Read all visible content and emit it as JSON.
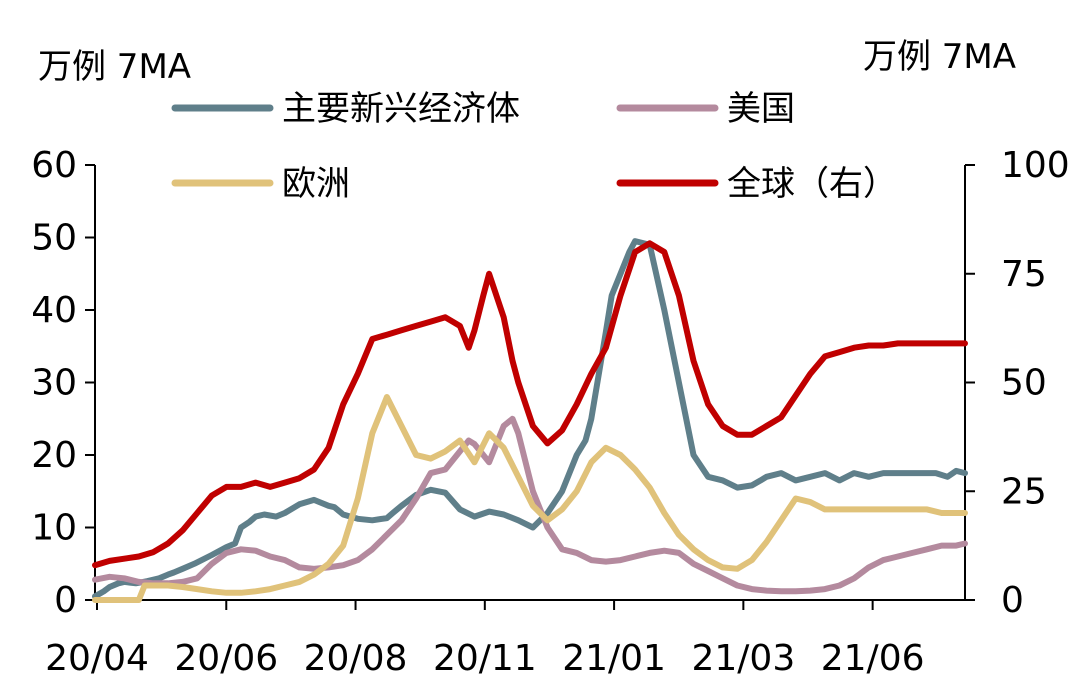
{
  "chart_data": {
    "type": "line",
    "left_unit": "万例 7MA",
    "right_unit": "万例 7MA",
    "x_ticks": [
      "20/04",
      "20/06",
      "20/08",
      "20/11",
      "21/01",
      "21/03",
      "21/06"
    ],
    "left_ticks": [
      "0",
      "10",
      "20",
      "30",
      "40",
      "50",
      "60"
    ],
    "right_ticks": [
      "0",
      "25",
      "50",
      "75",
      "100"
    ],
    "ylim_left": [
      0,
      60
    ],
    "ylim_right": [
      0,
      100
    ],
    "legend": {
      "columns": 2
    },
    "series": [
      {
        "name": "主要新兴经济体",
        "color": "#5f7f8a",
        "axis": "left",
        "x": [
          0,
          3,
          5,
          8,
          10,
          12,
          14,
          18,
          22,
          25,
          27,
          30,
          34,
          40,
          45,
          48,
          50,
          53,
          55,
          58,
          62,
          65,
          70,
          75,
          80,
          82,
          85,
          90,
          95,
          100,
          102,
          105,
          110,
          115,
          120,
          125,
          130,
          135,
          140,
          145,
          150,
          155,
          160,
          165,
          168,
          170,
          175,
          177,
          180,
          183,
          185,
          190,
          195,
          200,
          205,
          210,
          215,
          220,
          225,
          228,
          230,
          235,
          240,
          245,
          250,
          255,
          260,
          265,
          270,
          275,
          280,
          284,
          288,
          292,
          295,
          298
        ],
        "values": [
          0.5,
          1.2,
          1.8,
          2.3,
          2.5,
          2.4,
          2.3,
          2.6,
          3.0,
          3.5,
          3.8,
          4.3,
          5.0,
          6.2,
          7.3,
          7.8,
          10.0,
          10.8,
          11.5,
          11.8,
          11.5,
          12.0,
          13.2,
          13.8,
          13.0,
          12.8,
          11.8,
          11.2,
          11.0,
          11.3,
          12.0,
          13.0,
          14.5,
          15.2,
          14.8,
          12.5,
          11.5,
          12.2,
          11.8,
          11.0,
          10.0,
          12.0,
          15.0,
          20.0,
          22.0,
          25.0,
          37.0,
          42.0,
          45.0,
          48.0,
          49.5,
          49.0,
          40.0,
          30.0,
          20.0,
          17.0,
          16.5,
          15.5,
          15.8,
          16.5,
          17.0,
          17.5,
          16.5,
          17.0,
          17.5,
          16.5,
          17.5,
          17.0,
          17.5,
          17.5,
          17.5,
          17.5,
          17.5,
          17.0,
          17.8,
          17.5
        ]
      },
      {
        "name": "美国",
        "color": "#b48a9e",
        "axis": "left",
        "x": [
          0,
          5,
          10,
          15,
          20,
          25,
          30,
          35,
          40,
          45,
          50,
          55,
          60,
          65,
          70,
          75,
          80,
          85,
          90,
          95,
          100,
          105,
          110,
          115,
          120,
          125,
          128,
          130,
          133,
          135,
          140,
          143,
          145,
          150,
          155,
          160,
          165,
          170,
          175,
          180,
          185,
          190,
          195,
          200,
          205,
          210,
          215,
          220,
          225,
          230,
          235,
          240,
          245,
          250,
          255,
          260,
          265,
          270,
          275,
          280,
          285,
          290,
          295,
          298
        ],
        "values": [
          2.8,
          3.2,
          3.0,
          2.5,
          2.3,
          2.3,
          2.5,
          3.0,
          5.0,
          6.5,
          7.0,
          6.8,
          6.0,
          5.5,
          4.5,
          4.3,
          4.5,
          4.8,
          5.5,
          7.0,
          9.0,
          11.0,
          14.0,
          17.5,
          18.0,
          20.5,
          22.0,
          21.5,
          20.0,
          19.0,
          24.0,
          25.0,
          23.0,
          15.0,
          10.0,
          7.0,
          6.5,
          5.5,
          5.3,
          5.5,
          6.0,
          6.5,
          6.8,
          6.5,
          5.0,
          4.0,
          3.0,
          2.0,
          1.5,
          1.3,
          1.2,
          1.2,
          1.3,
          1.5,
          2.0,
          3.0,
          4.5,
          5.5,
          6.0,
          6.5,
          7.0,
          7.5,
          7.5,
          7.8
        ]
      },
      {
        "name": "欧洲",
        "color": "#e0c27a",
        "axis": "left",
        "x": [
          0,
          5,
          10,
          15,
          17,
          20,
          25,
          30,
          35,
          40,
          45,
          50,
          55,
          60,
          65,
          70,
          75,
          80,
          85,
          90,
          95,
          100,
          105,
          110,
          115,
          120,
          125,
          130,
          135,
          140,
          145,
          150,
          155,
          160,
          165,
          170,
          175,
          180,
          185,
          190,
          195,
          200,
          205,
          210,
          215,
          220,
          225,
          230,
          235,
          240,
          245,
          250,
          255,
          260,
          265,
          270,
          275,
          280,
          285,
          290,
          295,
          298
        ],
        "values": [
          0,
          0,
          0,
          0,
          2.0,
          2.0,
          2.0,
          1.8,
          1.5,
          1.2,
          1.0,
          1.0,
          1.2,
          1.5,
          2.0,
          2.5,
          3.5,
          5.0,
          7.5,
          14.0,
          23.0,
          28.0,
          24.0,
          20.0,
          19.5,
          20.5,
          22.0,
          19.0,
          23.0,
          21.0,
          17.0,
          13.0,
          11.0,
          12.5,
          15.0,
          19.0,
          21.0,
          20.0,
          18.0,
          15.5,
          12.0,
          9.0,
          7.0,
          5.5,
          4.5,
          4.3,
          5.5,
          8.0,
          11.0,
          14.0,
          13.5,
          12.5,
          12.5,
          12.5,
          12.5,
          12.5,
          12.5,
          12.5,
          12.5,
          12.0,
          12.0,
          12.0
        ]
      },
      {
        "name": "全球（右）",
        "color": "#c00000",
        "axis": "right",
        "x": [
          0,
          5,
          10,
          15,
          20,
          25,
          30,
          35,
          40,
          45,
          50,
          55,
          60,
          65,
          70,
          75,
          80,
          85,
          90,
          95,
          100,
          105,
          110,
          115,
          120,
          125,
          128,
          130,
          133,
          135,
          140,
          143,
          145,
          150,
          155,
          160,
          165,
          170,
          175,
          180,
          185,
          190,
          195,
          200,
          205,
          210,
          215,
          220,
          225,
          230,
          235,
          240,
          245,
          250,
          255,
          260,
          265,
          270,
          275,
          280,
          285,
          290,
          295,
          298
        ],
        "values": [
          8,
          9,
          9.5,
          10,
          11,
          13,
          16,
          20,
          24,
          26,
          26,
          27,
          26,
          27,
          28,
          30,
          35,
          45,
          52,
          60,
          61,
          62,
          63,
          64,
          65,
          63,
          58,
          62,
          70,
          75,
          65,
          55,
          50,
          40,
          36,
          39,
          45,
          52,
          58,
          70,
          80,
          82,
          80,
          70,
          55,
          45,
          40,
          38,
          38,
          40,
          42,
          47,
          52,
          56,
          57,
          58,
          58.5,
          58.5,
          59,
          59,
          59,
          59,
          59,
          59
        ]
      }
    ]
  }
}
